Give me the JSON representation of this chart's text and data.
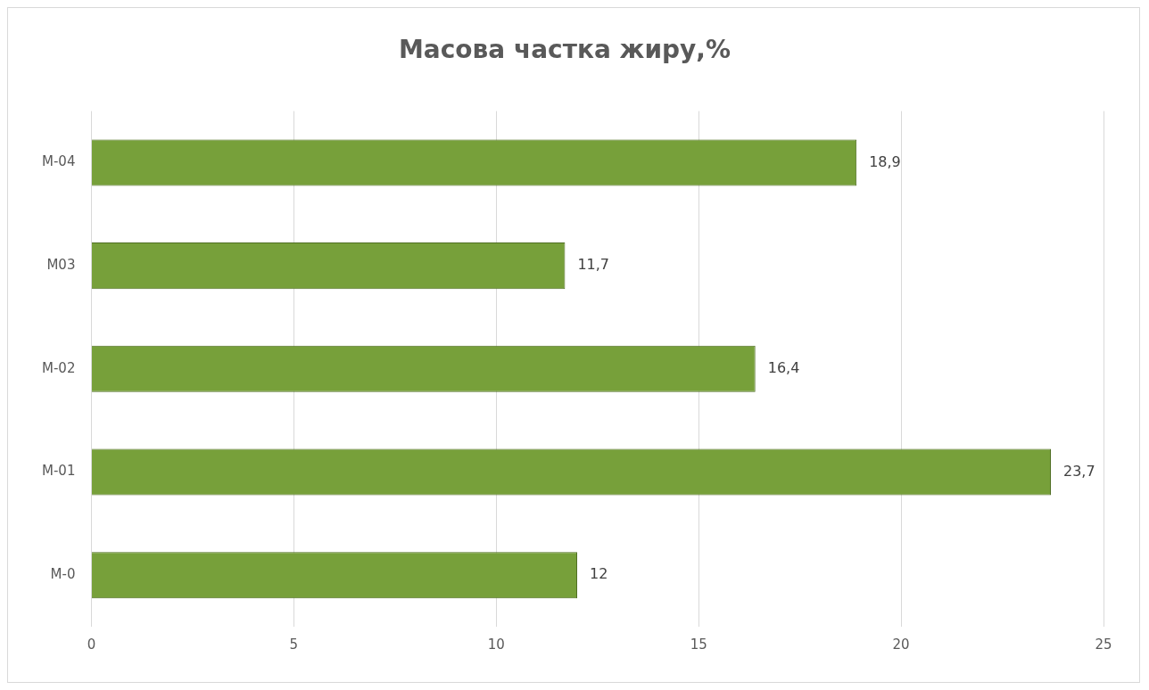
{
  "chart_data": {
    "type": "bar",
    "orientation": "horizontal",
    "title": "Масова частка жиру,%",
    "categories": [
      "M-04",
      "M03",
      "M-02",
      "M-01",
      "M-0"
    ],
    "values": [
      18.9,
      11.7,
      16.4,
      23.7,
      12
    ],
    "value_labels": [
      "18,9",
      "11,7",
      "16,4",
      "23,7",
      "12"
    ],
    "color": "#77a03a",
    "xlim": [
      0,
      25
    ],
    "xticks": [
      0,
      5,
      10,
      15,
      20,
      25
    ],
    "grid": "x",
    "legend": false
  }
}
